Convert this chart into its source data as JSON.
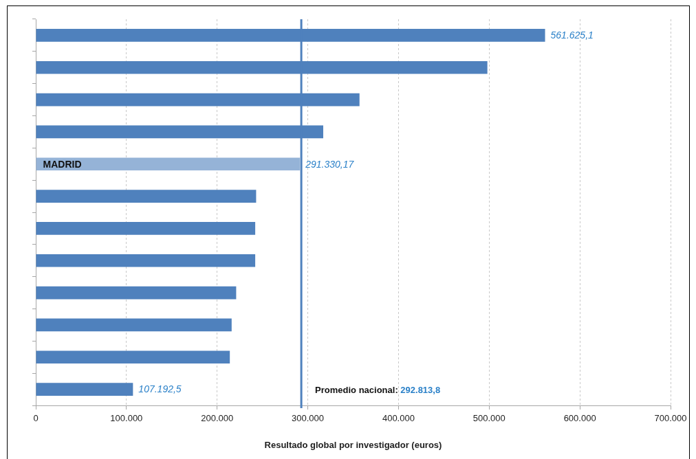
{
  "chart_data": {
    "type": "bar",
    "orientation": "horizontal",
    "categories": [
      null,
      null,
      null,
      null,
      "MADRID",
      null,
      null,
      null,
      null,
      null,
      null,
      null
    ],
    "values": [
      561625.1,
      498000,
      357000,
      317000,
      291330.17,
      243000,
      242000,
      242000,
      221000,
      216000,
      214000,
      107192.5
    ],
    "colors": [
      "#4f81bd",
      "#4f81bd",
      "#4f81bd",
      "#4f81bd",
      "#95b3d7",
      "#4f81bd",
      "#4f81bd",
      "#4f81bd",
      "#4f81bd",
      "#4f81bd",
      "#4f81bd",
      "#4f81bd"
    ],
    "value_labels": [
      "561.625,1",
      null,
      null,
      null,
      "291.330,17",
      null,
      null,
      null,
      null,
      null,
      null,
      "107.192,5"
    ],
    "xlabel": "Resultado global por investigador (euros)",
    "xlim": [
      0,
      700000
    ],
    "xticks": [
      0,
      {
        "value": 100000,
        "label": "100.000"
      },
      {
        "value": 200000,
        "label": "200.000"
      },
      {
        "value": 300000,
        "label": "300.000"
      },
      {
        "value": 400000,
        "label": "400.000"
      },
      {
        "value": 500000,
        "label": "500.000"
      },
      {
        "value": 600000,
        "label": "600.000"
      },
      {
        "value": 700000,
        "label": "700.000"
      }
    ],
    "grid": "x",
    "ref_lines": [
      {
        "axis": "x",
        "value": 292813.8,
        "label": "Promedio nacional: 292.813,8",
        "color": "#4f81bd"
      }
    ]
  }
}
